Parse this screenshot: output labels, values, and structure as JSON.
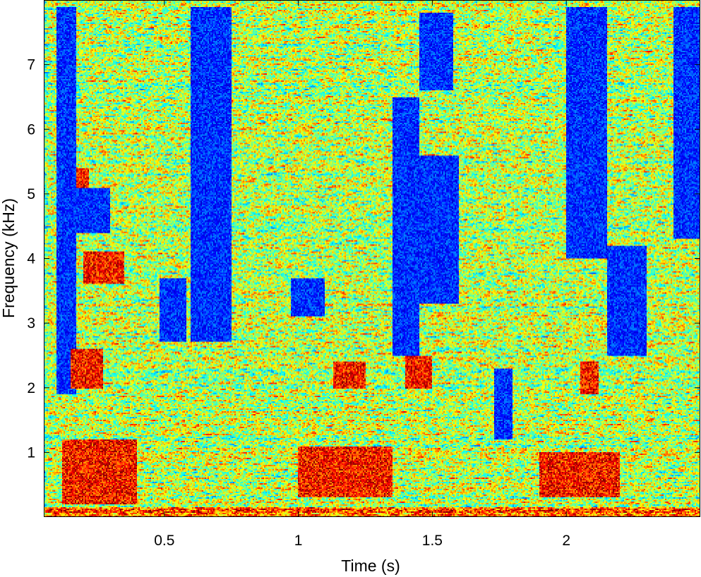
{
  "chart_data": {
    "type": "heatmap",
    "title": "",
    "xlabel": "Time (s)",
    "ylabel": "Frequency (kHz)",
    "xlim": [
      0.05,
      2.5
    ],
    "ylim": [
      0,
      8
    ],
    "xticks": [
      0.5,
      1,
      1.5,
      2
    ],
    "xtick_labels": [
      "0.5",
      "1",
      "1.5",
      "2"
    ],
    "yticks": [
      1,
      2,
      3,
      4,
      5,
      6,
      7
    ],
    "ytick_labels": [
      "1",
      "2",
      "3",
      "4",
      "5",
      "6",
      "7"
    ],
    "colormap": "jet",
    "grid": false,
    "quiet_regions": [
      {
        "t": [
          0.1,
          0.17
        ],
        "f": [
          1.9,
          7.9
        ]
      },
      {
        "t": [
          0.17,
          0.3
        ],
        "f": [
          4.4,
          5.1
        ]
      },
      {
        "t": [
          0.6,
          0.75
        ],
        "f": [
          2.7,
          7.9
        ]
      },
      {
        "t": [
          0.48,
          0.58
        ],
        "f": [
          2.7,
          3.7
        ]
      },
      {
        "t": [
          0.97,
          1.1
        ],
        "f": [
          3.1,
          3.7
        ]
      },
      {
        "t": [
          1.35,
          1.45
        ],
        "f": [
          2.5,
          6.5
        ]
      },
      {
        "t": [
          1.43,
          1.6
        ],
        "f": [
          3.3,
          5.6
        ]
      },
      {
        "t": [
          1.45,
          1.58
        ],
        "f": [
          6.6,
          7.8
        ]
      },
      {
        "t": [
          2.0,
          2.15
        ],
        "f": [
          4.0,
          7.9
        ]
      },
      {
        "t": [
          2.15,
          2.3
        ],
        "f": [
          2.5,
          4.2
        ]
      },
      {
        "t": [
          2.4,
          2.5
        ],
        "f": [
          4.3,
          7.9
        ]
      },
      {
        "t": [
          1.73,
          1.8
        ],
        "f": [
          1.2,
          2.3
        ]
      }
    ],
    "hot_regions": [
      {
        "t": [
          0.15,
          0.27
        ],
        "f": [
          2.0,
          2.6
        ]
      },
      {
        "t": [
          0.17,
          0.22
        ],
        "f": [
          5.1,
          5.4
        ]
      },
      {
        "t": [
          0.2,
          0.35
        ],
        "f": [
          3.6,
          4.1
        ]
      },
      {
        "t": [
          1.13,
          1.25
        ],
        "f": [
          2.0,
          2.4
        ]
      },
      {
        "t": [
          1.4,
          1.5
        ],
        "f": [
          2.0,
          2.5
        ]
      },
      {
        "t": [
          2.05,
          2.12
        ],
        "f": [
          1.9,
          2.4
        ]
      },
      {
        "t": [
          0.12,
          0.4
        ],
        "f": [
          0.2,
          1.2
        ]
      },
      {
        "t": [
          1.0,
          1.35
        ],
        "f": [
          0.3,
          1.1
        ]
      },
      {
        "t": [
          1.9,
          2.2
        ],
        "f": [
          0.3,
          1.0
        ]
      }
    ]
  }
}
